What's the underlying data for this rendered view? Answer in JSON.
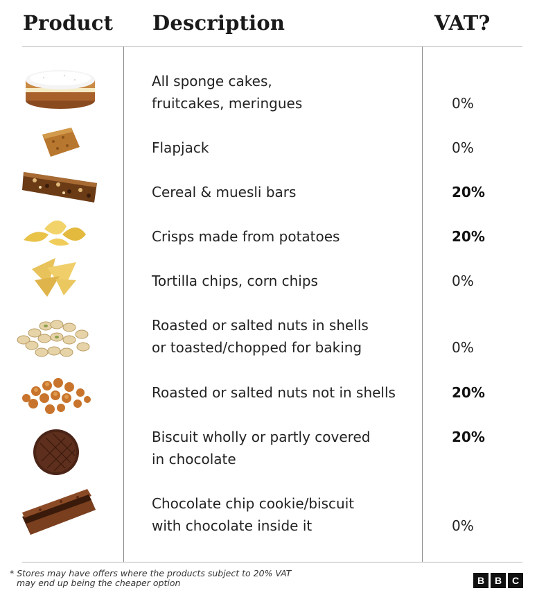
{
  "headers": {
    "product": "Product",
    "description": "Description",
    "vat": "VAT?"
  },
  "rows": [
    {
      "icon": "sponge-cake-icon",
      "description_lines": [
        "All sponge cakes,",
        "fruitcakes, meringues"
      ],
      "vat": "0%",
      "vat_bold": false
    },
    {
      "icon": "flapjack-icon",
      "description_lines": [
        "Flapjack"
      ],
      "vat": "0%",
      "vat_bold": false
    },
    {
      "icon": "cereal-bar-icon",
      "description_lines": [
        "Cereal & muesli bars"
      ],
      "vat": "20%",
      "vat_bold": true
    },
    {
      "icon": "potato-crisps-icon",
      "description_lines": [
        "Crisps made from potatoes"
      ],
      "vat": "20%",
      "vat_bold": true
    },
    {
      "icon": "tortilla-chips-icon",
      "description_lines": [
        "Tortilla chips, corn chips"
      ],
      "vat": "0%",
      "vat_bold": false
    },
    {
      "icon": "pistachio-nuts-icon",
      "description_lines": [
        "Roasted or salted nuts in shells",
        "or toasted/chopped for baking"
      ],
      "vat": "0%",
      "vat_bold": false
    },
    {
      "icon": "peanuts-icon",
      "description_lines": [
        "Roasted or salted nuts not in shells"
      ],
      "vat": "20%",
      "vat_bold": true
    },
    {
      "icon": "chocolate-biscuit-icon",
      "description_lines": [
        "Biscuit wholly or partly covered",
        "in chocolate"
      ],
      "vat": "20%",
      "vat_bold": true
    },
    {
      "icon": "bourbon-biscuit-icon",
      "description_lines": [
        "Chocolate chip cookie/biscuit",
        "with chocolate inside it"
      ],
      "vat": "0%",
      "vat_bold": false
    }
  ],
  "footnote": {
    "line1": "* Stores may have offers where the products subject to 20% VAT",
    "line2": "may end up being the cheaper option"
  },
  "logo": {
    "letters": [
      "B",
      "B",
      "C"
    ]
  }
}
